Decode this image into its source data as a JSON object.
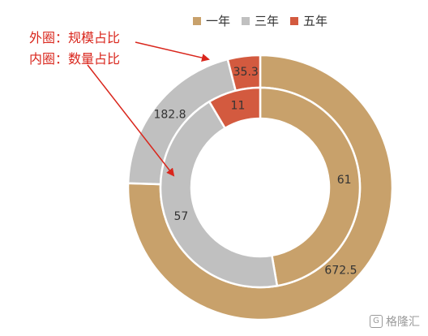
{
  "chart_data": {
    "type": "pie",
    "title": "",
    "legend": {
      "placement": "top-right"
    },
    "categories": [
      "一年",
      "三年",
      "五年"
    ],
    "colors": [
      "#C8A16B",
      "#C0C0C0",
      "#D35A3F"
    ],
    "series": [
      {
        "name": "规模占比",
        "ring": "outer",
        "values": [
          672.5,
          182.8,
          35.3
        ]
      },
      {
        "name": "数量占比",
        "ring": "inner",
        "values": [
          61,
          57,
          11
        ]
      }
    ]
  },
  "annotations": {
    "outer_label": "外圈：规模占比",
    "inner_label": "内圈：数量占比"
  },
  "watermark": {
    "icon": "G",
    "text": "格隆汇"
  }
}
